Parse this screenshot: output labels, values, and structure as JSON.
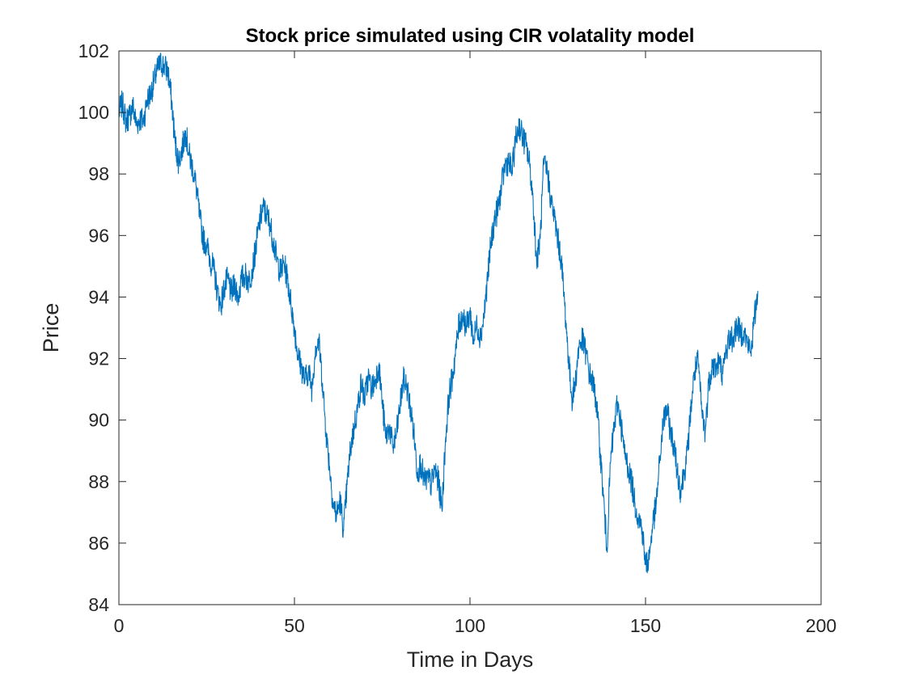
{
  "chart_data": {
    "type": "line",
    "title": "Stock price simulated using CIR volatality model",
    "xlabel": "Time in Days",
    "ylabel": "Price",
    "xlim": [
      0,
      200
    ],
    "ylim": [
      84,
      102
    ],
    "xticks": [
      "0",
      "50",
      "100",
      "150",
      "200"
    ],
    "yticks": [
      "84",
      "86",
      "88",
      "90",
      "92",
      "94",
      "96",
      "98",
      "100",
      "102"
    ],
    "grid": false,
    "series": [
      {
        "color": "#0072BD",
        "x": [
          0,
          1,
          2,
          3,
          4,
          5,
          6,
          7,
          8,
          9,
          10,
          11,
          12,
          13,
          14,
          15,
          16,
          17,
          18,
          19,
          20,
          21,
          22,
          23,
          24,
          25,
          26,
          27,
          28,
          29,
          30,
          31,
          32,
          33,
          34,
          35,
          36,
          37,
          38,
          39,
          40,
          41,
          42,
          43,
          44,
          45,
          46,
          47,
          48,
          49,
          50,
          51,
          52,
          53,
          54,
          55,
          56,
          57,
          58,
          59,
          60,
          61,
          62,
          63,
          64,
          65,
          66,
          67,
          68,
          69,
          70,
          71,
          72,
          73,
          74,
          75,
          76,
          77,
          78,
          79,
          80,
          81,
          82,
          83,
          84,
          85,
          86,
          87,
          88,
          89,
          90,
          91,
          92,
          93,
          94,
          95,
          96,
          97,
          98,
          99,
          100,
          101,
          102,
          103,
          104,
          105,
          106,
          107,
          108,
          109,
          110,
          111,
          112,
          113,
          114,
          115,
          116,
          117,
          118,
          119,
          120,
          121,
          122,
          123,
          124,
          125,
          126,
          127,
          128,
          129,
          130,
          131,
          132,
          133,
          134,
          135,
          136,
          137,
          138,
          139,
          140,
          141,
          142,
          143,
          144,
          145,
          146,
          147,
          148,
          149,
          150,
          151,
          152,
          153,
          154,
          155,
          156,
          157,
          158,
          159,
          160,
          161,
          162,
          163,
          164,
          165,
          166,
          167,
          168,
          169,
          170,
          171,
          172,
          173,
          174,
          175,
          176,
          177,
          178,
          179,
          180,
          181,
          182
        ],
        "values": [
          100.0,
          100.3,
          99.7,
          99.9,
          100.2,
          99.6,
          99.8,
          99.7,
          100.4,
          100.6,
          101.0,
          101.4,
          101.6,
          101.5,
          101.3,
          100.4,
          99.0,
          98.4,
          98.8,
          99.4,
          98.6,
          98.2,
          97.6,
          96.6,
          95.9,
          95.7,
          95.2,
          94.9,
          94.2,
          93.7,
          94.3,
          94.6,
          94.1,
          94.4,
          94.0,
          94.6,
          94.7,
          94.5,
          94.9,
          95.6,
          96.4,
          96.9,
          96.7,
          96.4,
          95.8,
          95.2,
          94.8,
          95.1,
          94.6,
          93.8,
          93.0,
          92.1,
          91.7,
          91.3,
          91.6,
          91.0,
          92.4,
          92.5,
          91.2,
          89.6,
          88.5,
          87.3,
          86.9,
          87.4,
          86.4,
          87.9,
          89.1,
          89.8,
          90.4,
          91.2,
          90.7,
          91.4,
          91.0,
          91.3,
          91.8,
          90.6,
          89.4,
          89.8,
          89.1,
          89.5,
          90.4,
          91.3,
          91.1,
          90.4,
          89.6,
          88.3,
          88.6,
          88.0,
          88.1,
          87.9,
          88.4,
          88.0,
          87.1,
          89.3,
          90.8,
          91.4,
          92.3,
          93.2,
          93.4,
          93.0,
          93.5,
          92.6,
          93.1,
          92.7,
          93.4,
          94.6,
          95.8,
          96.5,
          96.9,
          97.6,
          98.3,
          98.4,
          98.1,
          99.1,
          99.6,
          99.2,
          98.9,
          98.3,
          97.1,
          95.1,
          95.9,
          98.3,
          98.1,
          97.2,
          96.6,
          95.9,
          95.2,
          93.7,
          92.1,
          90.7,
          91.2,
          92.4,
          92.6,
          92.2,
          91.5,
          91.2,
          90.6,
          89.1,
          87.5,
          85.8,
          88.6,
          89.7,
          90.6,
          89.9,
          88.9,
          88.5,
          88.0,
          87.3,
          86.8,
          86.5,
          85.3,
          85.5,
          86.6,
          87.2,
          88.6,
          89.9,
          90.4,
          89.7,
          89.2,
          88.4,
          87.7,
          88.3,
          89.0,
          90.5,
          91.6,
          91.9,
          90.3,
          89.6,
          91.2,
          91.8,
          91.7,
          91.9,
          91.5,
          92.3,
          92.7,
          92.6,
          93.1,
          92.8,
          92.9,
          92.5,
          92.2,
          93.3,
          94.2
        ]
      }
    ]
  }
}
